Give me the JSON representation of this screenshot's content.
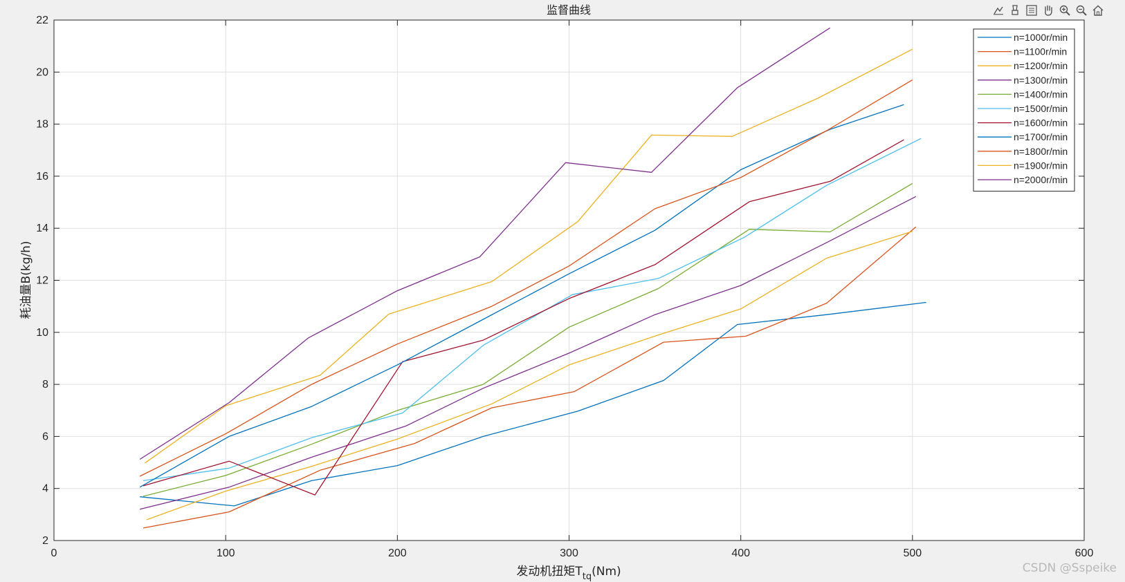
{
  "toolbar": {
    "icons": [
      "data-tips-icon",
      "brush-icon",
      "legend-toggle-icon",
      "pan-hand-icon",
      "zoom-in-icon",
      "zoom-out-icon",
      "home-icon"
    ]
  },
  "watermark": "CSDN @Sspeike",
  "chart_data": {
    "type": "line",
    "title": "监督曲线",
    "xlabel_main": "发动机扭矩T",
    "xlabel_sub": "tq",
    "xlabel_unit": "(Nm)",
    "ylabel": "耗油量B(kg/h)",
    "xlim": [
      0,
      600
    ],
    "ylim": [
      2,
      22
    ],
    "xticks": [
      0,
      100,
      200,
      300,
      400,
      500,
      600
    ],
    "yticks": [
      2,
      4,
      6,
      8,
      10,
      12,
      14,
      16,
      18,
      20,
      22
    ],
    "grid": true,
    "legend_position": "top-right",
    "series": [
      {
        "name": "n=1000r/min",
        "color": "#0072BD",
        "x": [
          50,
          105,
          150,
          200,
          250,
          305,
          355,
          398,
          450,
          508
        ],
        "y": [
          3.68,
          3.33,
          4.3,
          4.88,
          6.0,
          6.97,
          8.15,
          10.3,
          10.68,
          11.15
        ]
      },
      {
        "name": "n=1100r/min",
        "color": "#D95319",
        "x": [
          52,
          102,
          155,
          210,
          255,
          303,
          355,
          403,
          450,
          502
        ],
        "y": [
          2.48,
          3.1,
          4.7,
          5.73,
          7.1,
          7.72,
          9.62,
          9.85,
          11.12,
          14.05
        ]
      },
      {
        "name": "n=1200r/min",
        "color": "#EDB120",
        "x": [
          54,
          100,
          150,
          200,
          255,
          300,
          352,
          400,
          450,
          500
        ],
        "y": [
          2.8,
          3.9,
          4.85,
          5.9,
          7.25,
          8.75,
          9.9,
          10.9,
          12.85,
          13.88
        ]
      },
      {
        "name": "n=1300r/min",
        "color": "#7E2F8E",
        "x": [
          50,
          102,
          150,
          205,
          250,
          300,
          350,
          400,
          450,
          502
        ],
        "y": [
          3.2,
          4.05,
          5.2,
          6.4,
          7.85,
          9.2,
          10.68,
          11.8,
          13.45,
          15.22
        ]
      },
      {
        "name": "n=1400r/min",
        "color": "#77AC30",
        "x": [
          52,
          100,
          150,
          200,
          250,
          300,
          352,
          405,
          452,
          500
        ],
        "y": [
          3.7,
          4.5,
          5.7,
          7.0,
          8.0,
          10.2,
          11.68,
          13.96,
          13.86,
          15.72
        ]
      },
      {
        "name": "n=1500r/min",
        "color": "#4DBEEE",
        "x": [
          52,
          102,
          150,
          203,
          250,
          302,
          352,
          402,
          450,
          505
        ],
        "y": [
          4.3,
          4.78,
          5.95,
          6.9,
          9.5,
          11.45,
          12.07,
          13.65,
          15.65,
          17.45
        ]
      },
      {
        "name": "n=1600r/min",
        "color": "#A2142F",
        "x": [
          52,
          102,
          152,
          203,
          250,
          300,
          350,
          405,
          452,
          495
        ],
        "y": [
          4.1,
          5.05,
          3.75,
          8.87,
          9.7,
          11.3,
          12.6,
          15.02,
          15.8,
          17.4
        ]
      },
      {
        "name": "n=1700r/min",
        "color": "#0072BD",
        "x": [
          50,
          102,
          150,
          200,
          250,
          300,
          350,
          400,
          452,
          495
        ],
        "y": [
          4.05,
          6.0,
          7.15,
          8.75,
          10.5,
          12.25,
          13.92,
          16.25,
          17.8,
          18.75
        ]
      },
      {
        "name": "n=1800r/min",
        "color": "#D95319",
        "x": [
          50,
          100,
          150,
          200,
          255,
          300,
          350,
          400,
          450,
          500
        ],
        "y": [
          4.47,
          6.1,
          8.0,
          9.55,
          11.0,
          12.55,
          14.75,
          15.95,
          17.75,
          19.7
        ]
      },
      {
        "name": "n=1900r/min",
        "color": "#EDB120",
        "x": [
          53,
          100,
          155,
          195,
          255,
          305,
          348,
          395,
          445,
          500
        ],
        "y": [
          4.98,
          7.18,
          8.35,
          10.7,
          11.95,
          14.25,
          17.58,
          17.53,
          19.0,
          20.88
        ]
      },
      {
        "name": "n=2000r/min",
        "color": "#7E2F8E",
        "x": [
          50,
          102,
          148,
          200,
          248,
          298,
          348,
          398,
          452
        ],
        "y": [
          5.12,
          7.3,
          9.78,
          11.6,
          12.9,
          16.52,
          16.15,
          19.4,
          21.7
        ]
      }
    ]
  }
}
